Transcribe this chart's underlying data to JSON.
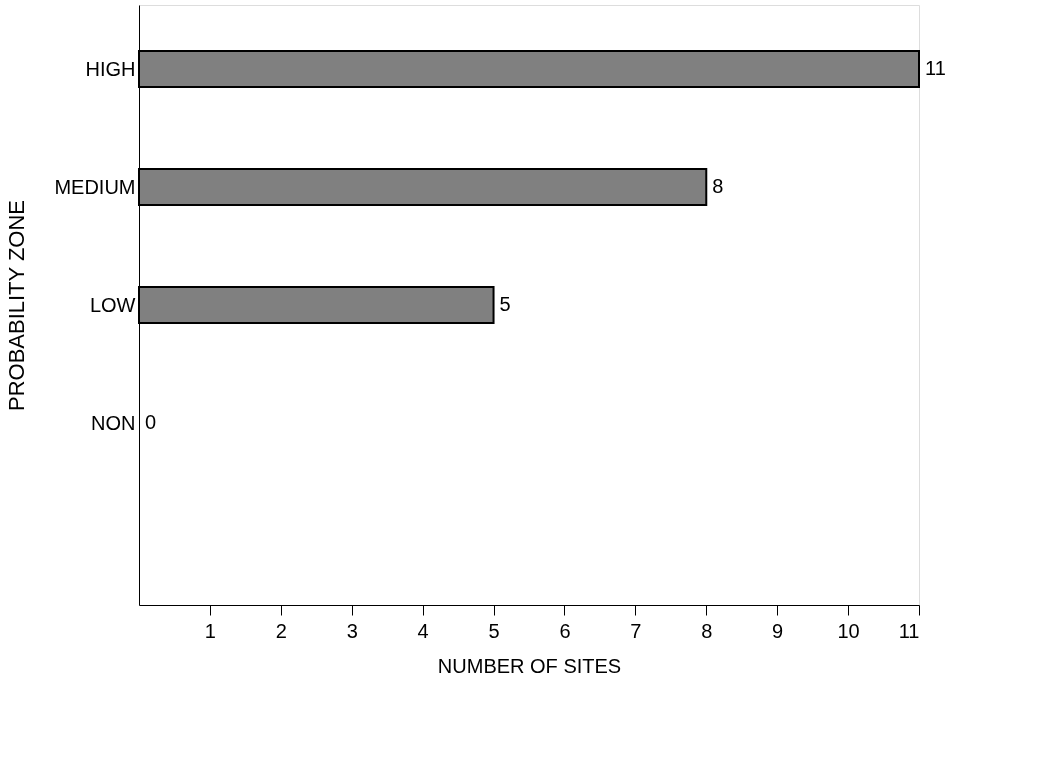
{
  "chart_data": {
    "type": "bar",
    "orientation": "horizontal",
    "xlabel": "NUMBER OF SITES",
    "ylabel": "PROBABILITY  ZONE",
    "categories": [
      "HIGH",
      "MEDIUM",
      "LOW",
      "NON"
    ],
    "values": [
      11,
      8,
      5,
      0
    ],
    "color": "#808080",
    "xlim": [
      0,
      11
    ],
    "xticks": [
      1,
      2,
      3,
      4,
      5,
      6,
      7,
      8,
      9,
      10,
      11
    ],
    "data_labels": true,
    "grid": false
  }
}
